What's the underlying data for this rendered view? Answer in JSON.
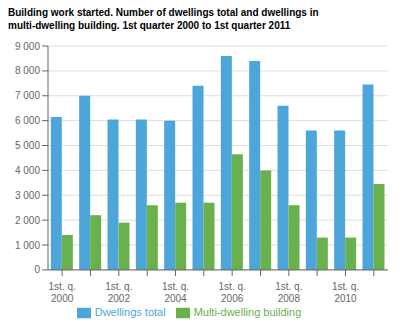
{
  "chart_data": {
    "type": "bar",
    "title": "Building work started. Number of dwellings total and dwellings in\nmulti-dwelling building. 1st quarter 2000 to 1st quarter 2011",
    "categories": [
      "1st. q.\n2000",
      null,
      "1st. q.\n2002",
      null,
      "1st. q.\n2004",
      null,
      "1st. q.\n2006",
      null,
      "1st. q.\n2008",
      null,
      "1st. q.\n2010",
      null
    ],
    "series": [
      {
        "name": "Dwellings total",
        "color": "#4da6d9",
        "values": [
          6150,
          7000,
          6050,
          6050,
          6000,
          7400,
          8600,
          8400,
          6600,
          5600,
          5600,
          7450
        ]
      },
      {
        "name": "Multi-dwelling building",
        "color": "#6ab04c",
        "values": [
          1400,
          2200,
          1900,
          2600,
          2700,
          2700,
          4650,
          4000,
          2600,
          1300,
          1300,
          3450
        ]
      }
    ],
    "ylim": [
      0,
      9000
    ],
    "yticks": [
      0,
      {
        "value": 1000,
        "label": "1 000"
      },
      {
        "value": 2000,
        "label": "2 000"
      },
      {
        "value": 3000,
        "label": "3 000"
      },
      {
        "value": 4000,
        "label": "4 000"
      },
      {
        "value": 5000,
        "label": "5 000"
      },
      {
        "value": 6000,
        "label": "6 000"
      },
      {
        "value": 7000,
        "label": "7 000"
      },
      {
        "value": 8000,
        "label": "8 000"
      },
      {
        "value": 9000,
        "label": "9 000"
      }
    ],
    "grid": true
  }
}
